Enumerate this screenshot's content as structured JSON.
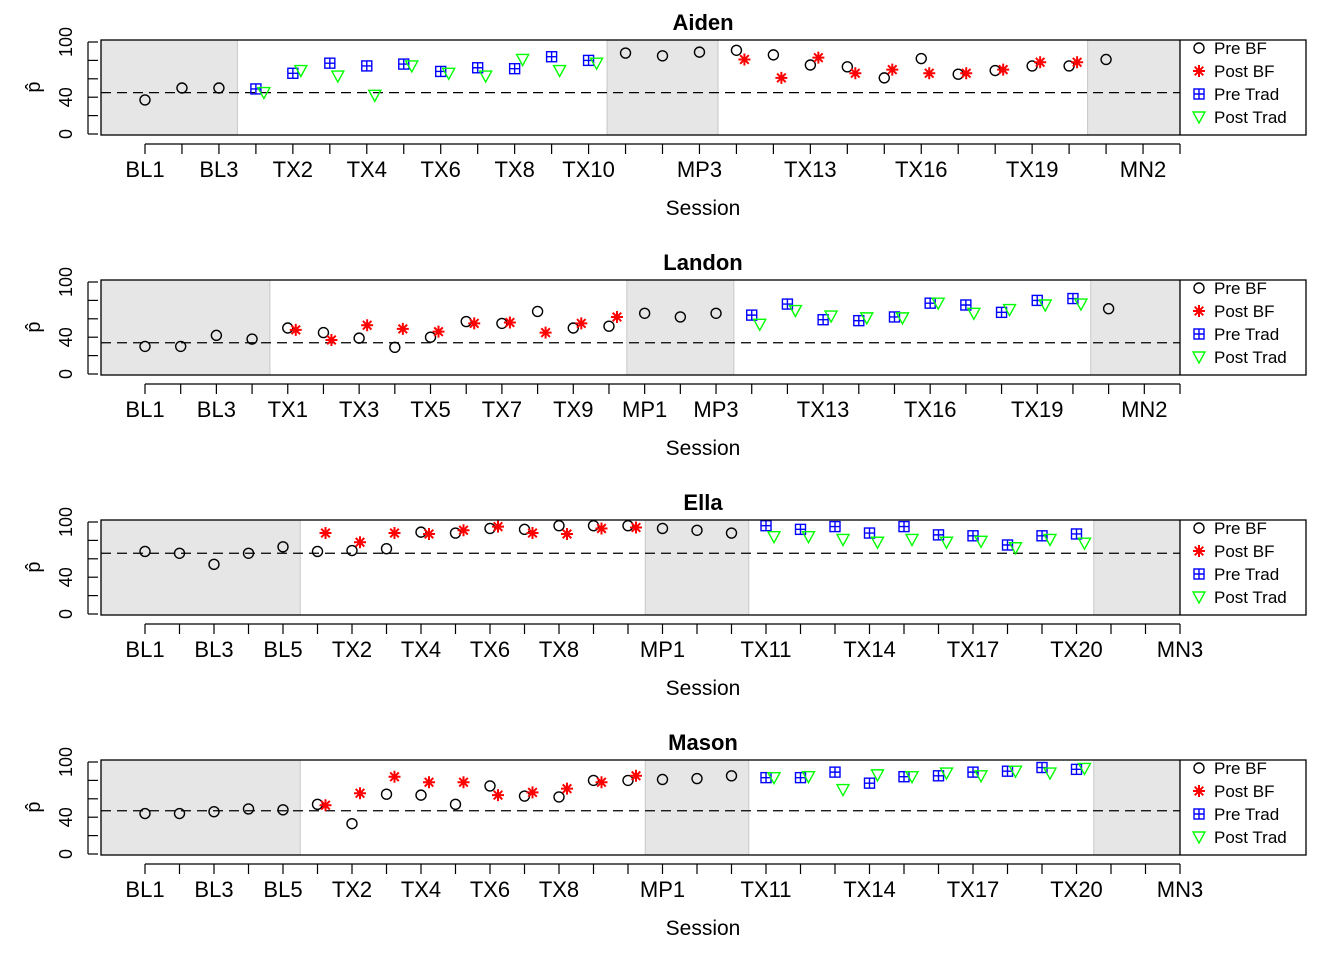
{
  "legend_labels": [
    "Pre BF",
    "Post BF",
    "Pre Trad",
    "Post Trad"
  ],
  "colors": {
    "pre_bf": "#000000",
    "post_bf": "#ff0000",
    "pre_trad": "#0000ff",
    "post_trad": "#00ff00",
    "phase_shade": "#e6e6e6",
    "reference_line": "#000000"
  },
  "chart_data": [
    {
      "type": "scatter",
      "title": "Aiden",
      "xlabel": "Session",
      "ylabel": "p̂",
      "ylim": [
        0,
        100
      ],
      "yticks": [
        0,
        40,
        100
      ],
      "grid": false,
      "legend_position": "right",
      "sessions": [
        "BL1",
        "BL2",
        "BL3",
        "TX1",
        "TX2",
        "TX3",
        "TX4",
        "TX5",
        "TX6",
        "TX7",
        "TX8",
        "TX9",
        "TX10",
        "MP1",
        "MP2",
        "MP3",
        "TX11",
        "TX12",
        "TX13",
        "TX14",
        "TX15",
        "TX16",
        "TX17",
        "TX18",
        "TX19",
        "TX20",
        "MN1",
        "MN2",
        "MN3"
      ],
      "tick_labels": [
        "BL1",
        "BL3",
        "TX2",
        "TX4",
        "TX6",
        "TX8",
        "TX10",
        "MP3",
        "TX13",
        "TX16",
        "TX19",
        "MN2"
      ],
      "shaded_phases": [
        [
          "BL1",
          "BL3"
        ],
        [
          "MP1",
          "MP3"
        ],
        [
          "MN1",
          "MN3"
        ]
      ],
      "reference_line": 45,
      "series": [
        {
          "name": "Pre BF",
          "marker": "circle",
          "x": [
            "BL1",
            "BL2",
            "BL3",
            "MP1",
            "MP2",
            "MP3",
            "TX11",
            "TX12",
            "TX13",
            "TX14",
            "TX15",
            "TX16",
            "TX17",
            "TX18",
            "TX19",
            "TX20",
            "MN1"
          ],
          "y": [
            37,
            50,
            50,
            88,
            85,
            89,
            91,
            86,
            75,
            73,
            61,
            82,
            65,
            69,
            74,
            74,
            81
          ]
        },
        {
          "name": "Post BF",
          "marker": "asterisk",
          "x": [
            "TX11",
            "TX12",
            "TX13",
            "TX14",
            "TX15",
            "TX16",
            "TX17",
            "TX18",
            "TX19",
            "TX20"
          ],
          "y": [
            81,
            61,
            83,
            66,
            70,
            66,
            66,
            70,
            78,
            78
          ]
        },
        {
          "name": "Pre Trad",
          "marker": "boxed-plus",
          "x": [
            "TX1",
            "TX2",
            "TX3",
            "TX4",
            "TX5",
            "TX6",
            "TX7",
            "TX8",
            "TX9",
            "TX10"
          ],
          "y": [
            49,
            66,
            77,
            74,
            76,
            68,
            72,
            71,
            84,
            80
          ]
        },
        {
          "name": "Post Trad",
          "marker": "triangle-down",
          "x": [
            "TX1",
            "TX2",
            "TX3",
            "TX4",
            "TX5",
            "TX6",
            "TX7",
            "TX8",
            "TX9",
            "TX10"
          ],
          "y": [
            45,
            69,
            63,
            42,
            74,
            66,
            63,
            81,
            69,
            77
          ]
        }
      ]
    },
    {
      "type": "scatter",
      "title": "Landon",
      "xlabel": "Session",
      "ylabel": "p̂",
      "ylim": [
        0,
        100
      ],
      "yticks": [
        0,
        40,
        100
      ],
      "grid": false,
      "legend_position": "right",
      "sessions": [
        "BL1",
        "BL2",
        "BL3",
        "BL4",
        "TX1",
        "TX2",
        "TX3",
        "TX4",
        "TX5",
        "TX6",
        "TX7",
        "TX8",
        "TX9",
        "TX10",
        "MP1",
        "MP2",
        "MP3",
        "TX11",
        "TX12",
        "TX13",
        "TX14",
        "TX15",
        "TX16",
        "TX17",
        "TX18",
        "TX19",
        "TX20",
        "MN1",
        "MN2",
        "MN3"
      ],
      "tick_labels": [
        "BL1",
        "BL3",
        "TX1",
        "TX3",
        "TX5",
        "TX7",
        "TX9",
        "MP1",
        "MP3",
        "TX13",
        "TX16",
        "TX19",
        "MN2"
      ],
      "shaded_phases": [
        [
          "BL1",
          "BL4"
        ],
        [
          "MP1",
          "MP3"
        ],
        [
          "MN1",
          "MN3"
        ]
      ],
      "reference_line": 34,
      "series": [
        {
          "name": "Pre BF",
          "marker": "circle",
          "x": [
            "BL1",
            "BL2",
            "BL3",
            "BL4",
            "TX1",
            "TX2",
            "TX3",
            "TX4",
            "TX5",
            "TX6",
            "TX7",
            "TX8",
            "TX9",
            "TX10",
            "MP1",
            "MP2",
            "MP3",
            "MN1"
          ],
          "y": [
            30,
            30,
            42,
            38,
            50,
            45,
            39,
            29,
            40,
            57,
            55,
            68,
            50,
            52,
            66,
            62,
            66,
            71
          ]
        },
        {
          "name": "Post BF",
          "marker": "asterisk",
          "x": [
            "TX1",
            "TX2",
            "TX3",
            "TX4",
            "TX5",
            "TX6",
            "TX7",
            "TX8",
            "TX9",
            "TX10"
          ],
          "y": [
            48,
            37,
            53,
            49,
            46,
            55,
            56,
            45,
            55,
            62
          ]
        },
        {
          "name": "Pre Trad",
          "marker": "boxed-plus",
          "x": [
            "TX11",
            "TX12",
            "TX13",
            "TX14",
            "TX15",
            "TX16",
            "TX17",
            "TX18",
            "TX19",
            "TX20"
          ],
          "y": [
            64,
            76,
            59,
            58,
            62,
            77,
            75,
            67,
            80,
            82
          ]
        },
        {
          "name": "Post Trad",
          "marker": "triangle-down",
          "x": [
            "TX11",
            "TX12",
            "TX13",
            "TX14",
            "TX15",
            "TX16",
            "TX17",
            "TX18",
            "TX19",
            "TX20"
          ],
          "y": [
            54,
            69,
            63,
            61,
            61,
            77,
            66,
            70,
            75,
            76
          ]
        }
      ]
    },
    {
      "type": "scatter",
      "title": "Ella",
      "xlabel": "Session",
      "ylabel": "p̂",
      "ylim": [
        0,
        100
      ],
      "yticks": [
        0,
        40,
        100
      ],
      "grid": false,
      "legend_position": "right",
      "sessions": [
        "BL1",
        "BL2",
        "BL3",
        "BL4",
        "BL5",
        "TX1",
        "TX2",
        "TX3",
        "TX4",
        "TX5",
        "TX6",
        "TX7",
        "TX8",
        "TX9",
        "TX10",
        "MP1",
        "MP2",
        "MP3",
        "TX11",
        "TX12",
        "TX13",
        "TX14",
        "TX15",
        "TX16",
        "TX17",
        "TX18",
        "TX19",
        "TX20",
        "MN1",
        "MN2",
        "MN3"
      ],
      "tick_labels": [
        "BL1",
        "BL3",
        "BL5",
        "TX2",
        "TX4",
        "TX6",
        "TX8",
        "MP1",
        "TX11",
        "TX14",
        "TX17",
        "TX20",
        "MN3"
      ],
      "shaded_phases": [
        [
          "BL1",
          "BL5"
        ],
        [
          "MP1",
          "MP3"
        ],
        [
          "MN1",
          "MN3"
        ]
      ],
      "reference_line": 66,
      "series": [
        {
          "name": "Pre BF",
          "marker": "circle",
          "x": [
            "BL1",
            "BL2",
            "BL3",
            "BL4",
            "BL5",
            "TX1",
            "TX2",
            "TX3",
            "TX4",
            "TX5",
            "TX6",
            "TX7",
            "TX8",
            "TX9",
            "TX10",
            "MP1",
            "MP2",
            "MP3"
          ],
          "y": [
            68,
            66,
            54,
            66,
            73,
            68,
            69,
            71,
            89,
            88,
            93,
            92,
            96,
            96,
            96,
            93,
            91,
            88
          ]
        },
        {
          "name": "Post BF",
          "marker": "asterisk",
          "x": [
            "TX1",
            "TX2",
            "TX3",
            "TX4",
            "TX5",
            "TX6",
            "TX7",
            "TX8",
            "TX9",
            "TX10"
          ],
          "y": [
            88,
            78,
            88,
            87,
            91,
            95,
            88,
            87,
            93,
            94
          ]
        },
        {
          "name": "Pre Trad",
          "marker": "boxed-plus",
          "x": [
            "TX11",
            "TX12",
            "TX13",
            "TX14",
            "TX15",
            "TX16",
            "TX17",
            "TX18",
            "TX19",
            "TX20"
          ],
          "y": [
            96,
            92,
            95,
            88,
            95,
            86,
            85,
            75,
            85,
            87
          ]
        },
        {
          "name": "Post Trad",
          "marker": "triangle-down",
          "x": [
            "TX11",
            "TX12",
            "TX13",
            "TX14",
            "TX15",
            "TX16",
            "TX17",
            "TX18",
            "TX19",
            "TX20"
          ],
          "y": [
            84,
            84,
            81,
            78,
            81,
            78,
            79,
            72,
            81,
            77
          ]
        }
      ]
    },
    {
      "type": "scatter",
      "title": "Mason",
      "xlabel": "Session",
      "ylabel": "p̂",
      "ylim": [
        0,
        100
      ],
      "yticks": [
        0,
        40,
        100
      ],
      "grid": false,
      "legend_position": "right",
      "sessions": [
        "BL1",
        "BL2",
        "BL3",
        "BL4",
        "BL5",
        "TX1",
        "TX2",
        "TX3",
        "TX4",
        "TX5",
        "TX6",
        "TX7",
        "TX8",
        "TX9",
        "TX10",
        "MP1",
        "MP2",
        "MP3",
        "TX11",
        "TX12",
        "TX13",
        "TX14",
        "TX15",
        "TX16",
        "TX17",
        "TX18",
        "TX19",
        "TX20",
        "MN1",
        "MN2",
        "MN3"
      ],
      "tick_labels": [
        "BL1",
        "BL3",
        "BL5",
        "TX2",
        "TX4",
        "TX6",
        "TX8",
        "MP1",
        "TX11",
        "TX14",
        "TX17",
        "TX20",
        "MN3"
      ],
      "shaded_phases": [
        [
          "BL1",
          "BL5"
        ],
        [
          "MP1",
          "MP3"
        ],
        [
          "MN1",
          "MN3"
        ]
      ],
      "reference_line": 47,
      "series": [
        {
          "name": "Pre BF",
          "marker": "circle",
          "x": [
            "BL1",
            "BL2",
            "BL3",
            "BL4",
            "BL5",
            "TX1",
            "TX2",
            "TX3",
            "TX4",
            "TX5",
            "TX6",
            "TX7",
            "TX8",
            "TX9",
            "TX10",
            "MP1",
            "MP2",
            "MP3"
          ],
          "y": [
            44,
            44,
            46,
            49,
            48,
            54,
            33,
            65,
            64,
            54,
            74,
            63,
            62,
            80,
            80,
            81,
            82,
            85
          ]
        },
        {
          "name": "Post BF",
          "marker": "asterisk",
          "x": [
            "TX1",
            "TX2",
            "TX3",
            "TX4",
            "TX5",
            "TX6",
            "TX7",
            "TX8",
            "TX9",
            "TX10"
          ],
          "y": [
            53,
            66,
            84,
            78,
            78,
            64,
            67,
            71,
            78,
            85
          ]
        },
        {
          "name": "Pre Trad",
          "marker": "boxed-plus",
          "x": [
            "TX11",
            "TX12",
            "TX13",
            "TX14",
            "TX15",
            "TX16",
            "TX17",
            "TX18",
            "TX19",
            "TX20"
          ],
          "y": [
            83,
            83,
            89,
            77,
            84,
            85,
            89,
            90,
            94,
            92
          ]
        },
        {
          "name": "Post Trad",
          "marker": "triangle-down",
          "x": [
            "TX11",
            "TX12",
            "TX13",
            "TX14",
            "TX15",
            "TX16",
            "TX17",
            "TX18",
            "TX19",
            "TX20"
          ],
          "y": [
            83,
            84,
            70,
            86,
            84,
            88,
            85,
            90,
            88,
            93
          ]
        }
      ]
    }
  ]
}
